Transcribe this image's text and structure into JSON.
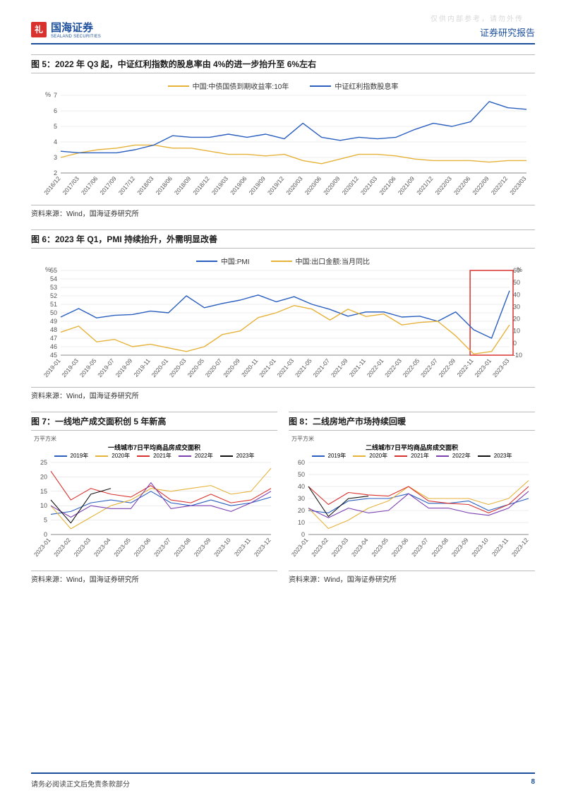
{
  "watermark": "仅供内部参考，请勿外传",
  "header": {
    "logo_cn": "国海证券",
    "logo_en": "SEALAND SECURITIES",
    "report_type": "证券研究报告"
  },
  "fig5": {
    "title": "图 5：2022 年 Q3 起，中证红利指数的股息率由 4%的进一步抬升至 6%左右",
    "source": "资料来源：Wind，国海证券研究所",
    "y_unit": "%",
    "series": [
      {
        "name": "中国:中债国债到期收益率:10年",
        "color": "#e6b23a"
      },
      {
        "name": "中证红利指数股息率",
        "color": "#2a5fbf"
      }
    ],
    "yticks": [
      2,
      3,
      4,
      5,
      6,
      7
    ],
    "xticks": [
      "2016/12",
      "2017/03",
      "2017/06",
      "2017/09",
      "2017/12",
      "2018/03",
      "2018/06",
      "2018/09",
      "2018/12",
      "2019/03",
      "2019/06",
      "2019/09",
      "2019/12",
      "2020/03",
      "2020/06",
      "2020/09",
      "2020/12",
      "2021/03",
      "2021/06",
      "2021/09",
      "2021/12",
      "2022/03",
      "2022/06",
      "2022/09",
      "2022/12",
      "2023/03"
    ],
    "s1_values": [
      3.0,
      3.3,
      3.5,
      3.6,
      3.8,
      3.8,
      3.6,
      3.6,
      3.4,
      3.2,
      3.2,
      3.1,
      3.2,
      2.8,
      2.6,
      2.9,
      3.2,
      3.2,
      3.1,
      2.9,
      2.8,
      2.8,
      2.8,
      2.7,
      2.8,
      2.8
    ],
    "s2_values": [
      3.4,
      3.3,
      3.3,
      3.3,
      3.5,
      3.8,
      4.4,
      4.3,
      4.3,
      4.5,
      4.3,
      4.5,
      4.2,
      5.2,
      4.3,
      4.1,
      4.3,
      4.2,
      4.3,
      4.8,
      5.2,
      5.0,
      5.3,
      6.6,
      6.2,
      6.1
    ]
  },
  "fig6": {
    "title": "图 6：2023 年 Q1，PMI 持续抬升，外需明显改善",
    "source": "资料来源：Wind，国海证券研究所",
    "y_unit_l": "%",
    "y_unit_r": "%",
    "series": [
      {
        "name": "中国:PMI",
        "color": "#2a5fbf"
      },
      {
        "name": "中国:出口金额:当月同比",
        "color": "#e6b23a"
      }
    ],
    "yticks_l": [
      45,
      46,
      47,
      48,
      49,
      50,
      51,
      52,
      53,
      54,
      55
    ],
    "yticks_r": [
      -10,
      0,
      10,
      20,
      30,
      40,
      50,
      60
    ],
    "xticks": [
      "2019-01",
      "2019-03",
      "2019-05",
      "2019-07",
      "2019-09",
      "2019-11",
      "2020-01",
      "2020-03",
      "2020-05",
      "2020-07",
      "2020-09",
      "2020-11",
      "2021-01",
      "2021-03",
      "2021-05",
      "2021-07",
      "2021-09",
      "2021-11",
      "2022-01",
      "2022-03",
      "2022-05",
      "2022-07",
      "2022-09",
      "2022-11",
      "2023-01",
      "2023-03"
    ],
    "s1_values": [
      49.5,
      50.5,
      49.4,
      49.7,
      49.8,
      50.2,
      50.0,
      52.0,
      50.6,
      51.1,
      51.5,
      52.1,
      51.3,
      51.9,
      51.0,
      50.4,
      49.6,
      50.1,
      50.1,
      49.5,
      49.6,
      49.0,
      50.1,
      48.0,
      47.0,
      52.6
    ],
    "s2_values": [
      9,
      14,
      1,
      3,
      -3,
      -1,
      -4,
      -7,
      -3,
      7,
      10,
      21,
      25,
      31,
      28,
      19,
      28,
      22,
      24,
      15,
      17,
      18,
      6,
      -9,
      -7,
      15
    ],
    "highlight_box": {
      "x_start": 23,
      "x_end": 25,
      "color": "#d9322e"
    }
  },
  "fig7": {
    "title": "图 7：一线地产成交面积创 5 年新高",
    "source": "资料来源：Wind，国海证券研究所",
    "sub_title": "一线城市7日平均商品房成交面积",
    "y_unit": "万平方米",
    "yticks": [
      0,
      5,
      10,
      15,
      20,
      25
    ],
    "xticks": [
      "2023-01",
      "2023-02",
      "2023-03",
      "2023-04",
      "2023-05",
      "2023-06",
      "2023-07",
      "2023-08",
      "2023-09",
      "2023-10",
      "2023-11",
      "2023-12"
    ],
    "series": [
      {
        "name": "2019年",
        "color": "#2a5fbf"
      },
      {
        "name": "2020年",
        "color": "#e6b23a"
      },
      {
        "name": "2021年",
        "color": "#d9322e"
      },
      {
        "name": "2022年",
        "color": "#7b3fb0"
      },
      {
        "name": "2023年",
        "color": "#111111"
      }
    ],
    "v2019": [
      7,
      8,
      11,
      12,
      11,
      15,
      11,
      10,
      12,
      10,
      11,
      13
    ],
    "v2020": [
      10,
      2,
      6,
      10,
      12,
      16,
      15,
      16,
      17,
      14,
      15,
      23
    ],
    "v2021": [
      22,
      12,
      16,
      14,
      13,
      17,
      12,
      11,
      14,
      11,
      12,
      16
    ],
    "v2022": [
      10,
      6,
      10,
      9,
      9,
      18,
      9,
      10,
      10,
      8,
      11,
      15
    ],
    "v2023": [
      12,
      4,
      14,
      16
    ]
  },
  "fig8": {
    "title": "图 8：二线房地产市场持续回暖",
    "source": "资料来源：Wind，国海证券研究所",
    "sub_title": "二线城市7日平均商品房成交面积",
    "y_unit": "万平方米",
    "yticks": [
      0,
      10,
      20,
      30,
      40,
      50,
      60
    ],
    "xticks": [
      "2023-01",
      "2023-02",
      "2023-03",
      "2023-04",
      "2023-05",
      "2023-06",
      "2023-07",
      "2023-08",
      "2023-09",
      "2023-10",
      "2023-11",
      "2023-12"
    ],
    "series": [
      {
        "name": "2019年",
        "color": "#2a5fbf"
      },
      {
        "name": "2020年",
        "color": "#e6b23a"
      },
      {
        "name": "2021年",
        "color": "#d9322e"
      },
      {
        "name": "2022年",
        "color": "#7b3fb0"
      },
      {
        "name": "2023年",
        "color": "#111111"
      }
    ],
    "v2019": [
      20,
      18,
      28,
      30,
      30,
      34,
      26,
      26,
      28,
      20,
      25,
      30
    ],
    "v2020": [
      22,
      5,
      12,
      22,
      28,
      40,
      30,
      30,
      30,
      25,
      30,
      45
    ],
    "v2021": [
      40,
      25,
      35,
      33,
      32,
      40,
      28,
      26,
      25,
      18,
      25,
      40
    ],
    "v2022": [
      22,
      14,
      22,
      18,
      20,
      34,
      22,
      22,
      18,
      16,
      22,
      36
    ],
    "v2023": [
      40,
      15,
      30,
      32
    ]
  },
  "footer": {
    "disclaimer": "请务必阅读正文后免责条款部分",
    "page": "8"
  },
  "chart_style": {
    "grid_color": "#d8d8d8",
    "axis_color": "#888888",
    "background": "#ffffff",
    "font_size_tick": 9,
    "font_size_title": 12,
    "line_width": 1.4
  }
}
